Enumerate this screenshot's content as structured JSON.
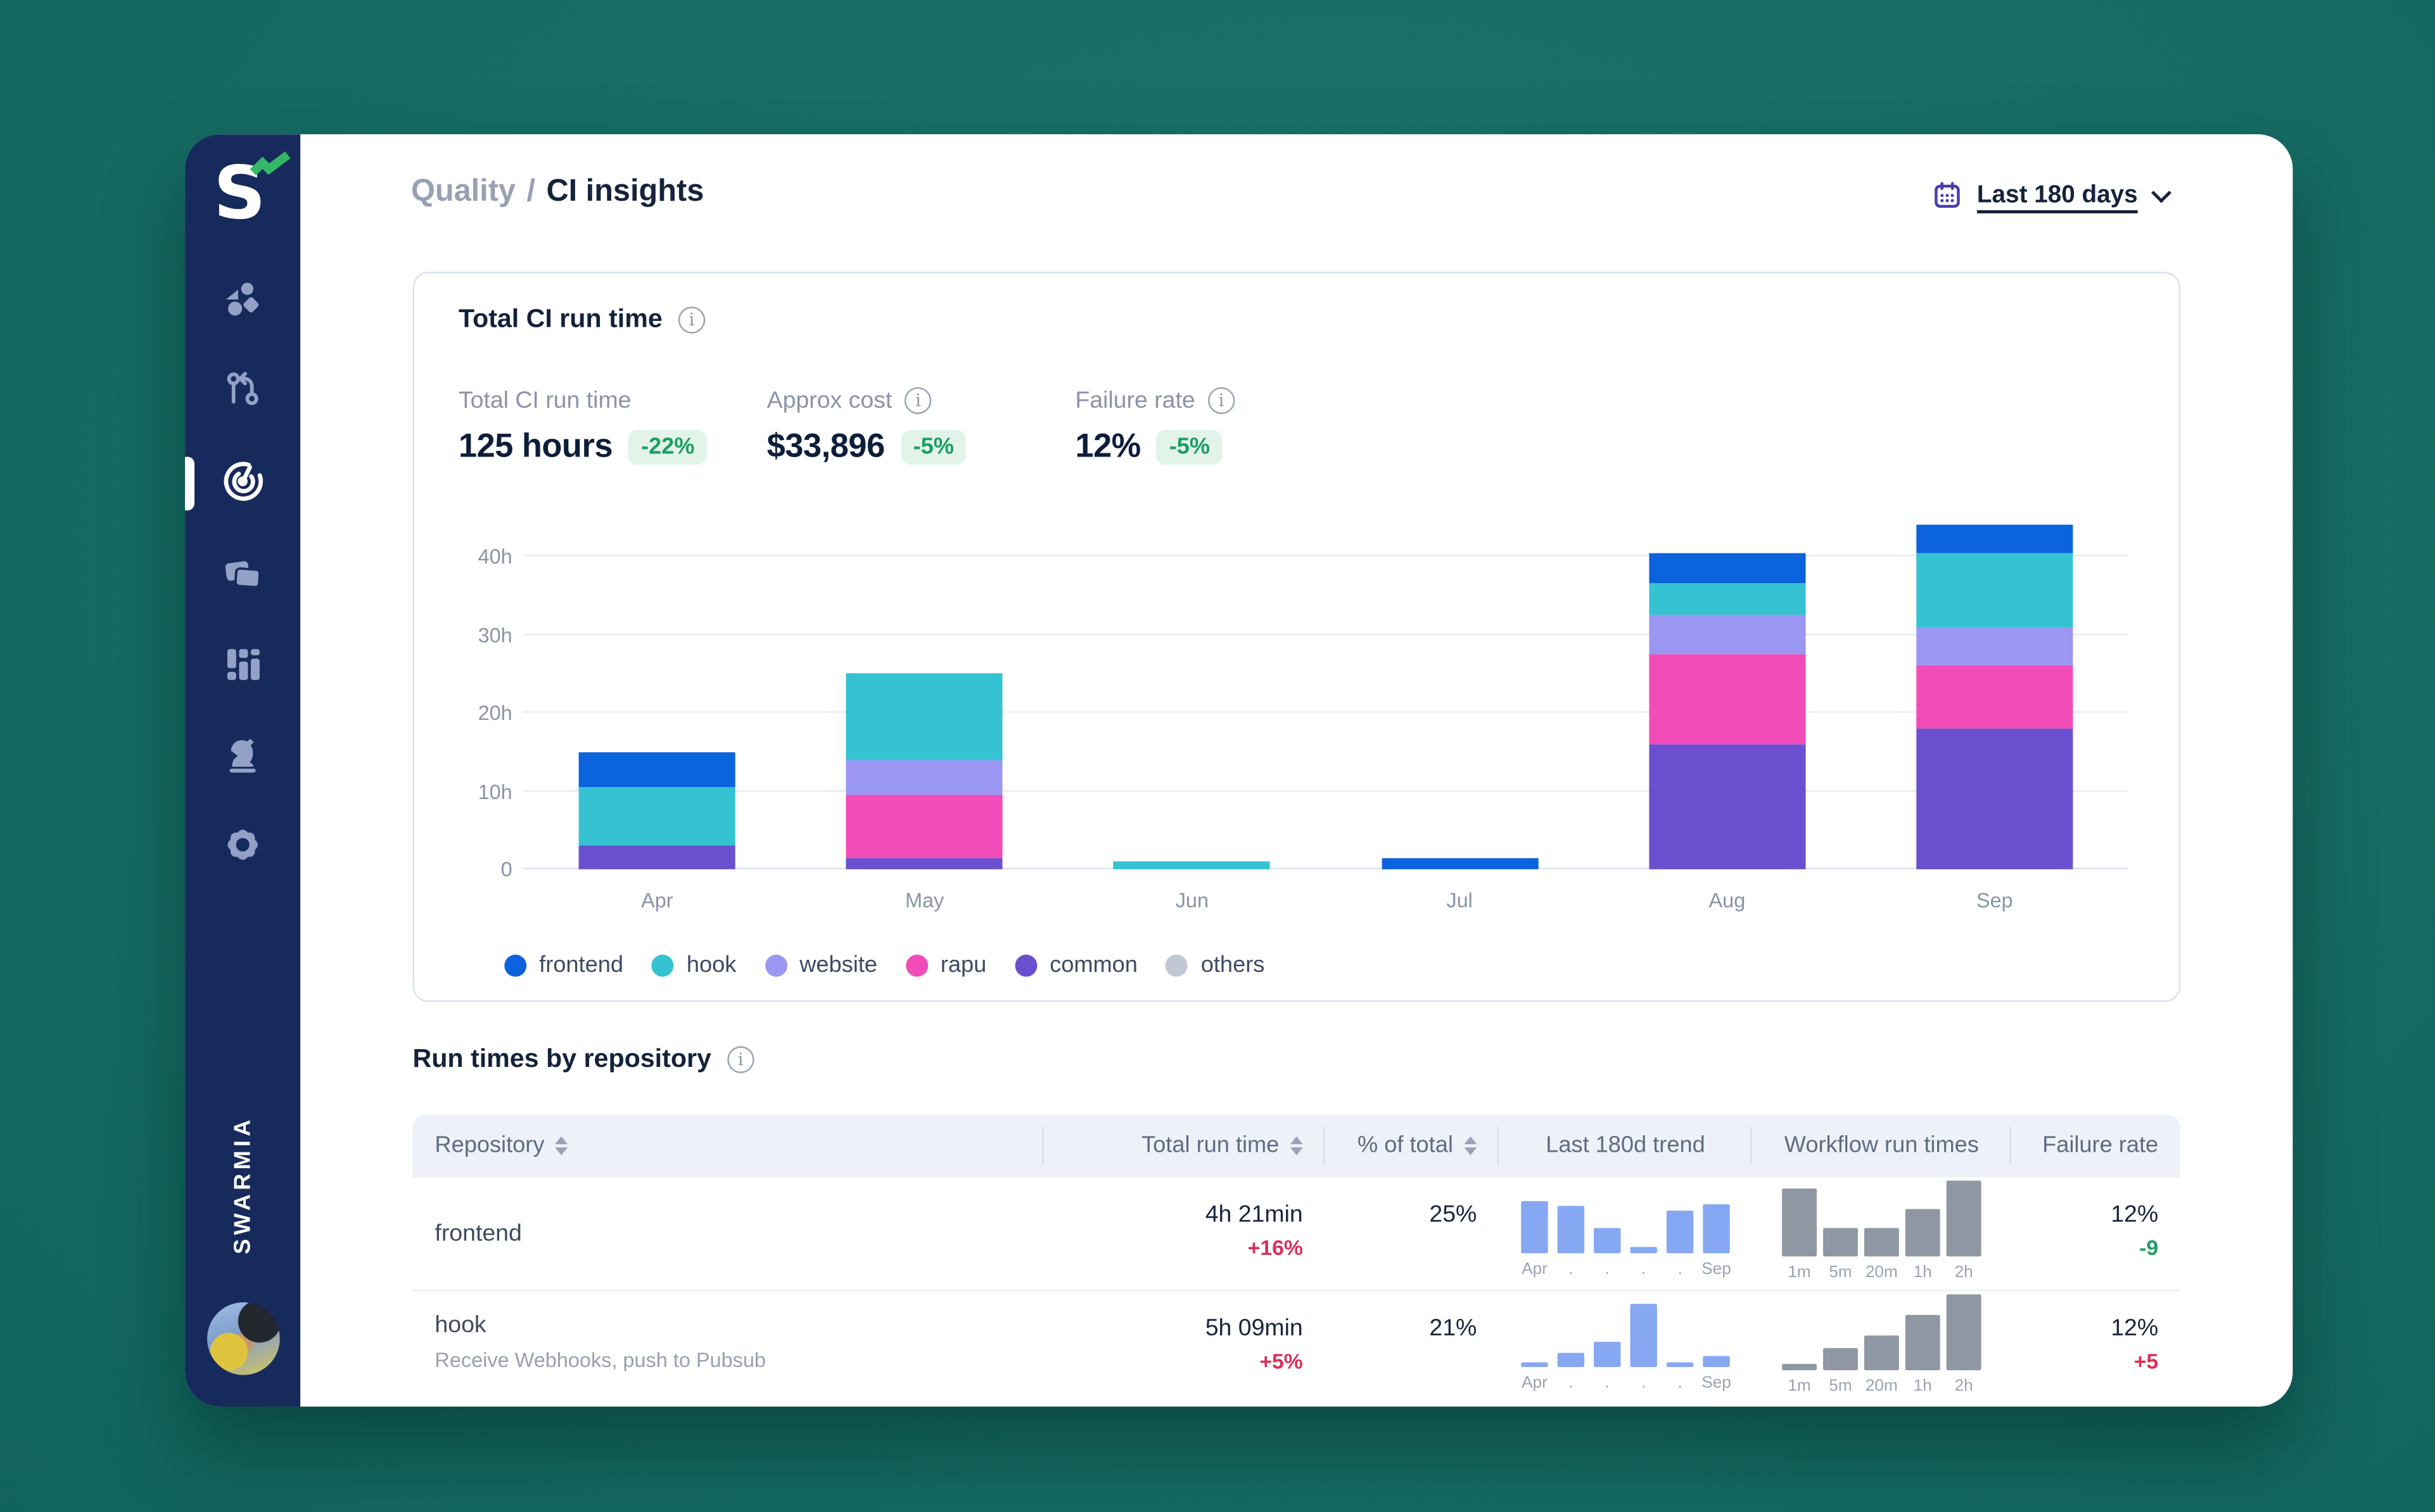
{
  "sidebar": {
    "brand_vertical": "SWARMIA",
    "items": [
      {
        "label": "shapes",
        "icon": "shapes-icon",
        "active": false
      },
      {
        "label": "pull-requests",
        "icon": "git-pull-request-icon",
        "active": false
      },
      {
        "label": "ci-insights",
        "icon": "radar-target-icon",
        "active": true
      },
      {
        "label": "copies",
        "icon": "copy-icon",
        "active": false
      },
      {
        "label": "boards",
        "icon": "kanban-icon",
        "active": false
      },
      {
        "label": "strategy",
        "icon": "chess-knight-icon",
        "active": false
      },
      {
        "label": "settings",
        "icon": "gear-icon",
        "active": false
      }
    ]
  },
  "header": {
    "breadcrumb": {
      "section": "Quality",
      "separator": "/",
      "page": "CI insights"
    },
    "date_filter": {
      "label": "Last 180 days",
      "icon": "calendar-icon"
    }
  },
  "summary_card": {
    "title": "Total CI run time",
    "stats": [
      {
        "label": "Total CI run time",
        "value": "125 hours",
        "delta": "-22%",
        "tone": "green",
        "info": false
      },
      {
        "label": "Approx cost",
        "value": "$33,896",
        "delta": "-5%",
        "tone": "green",
        "info": true
      },
      {
        "label": "Failure rate",
        "value": "12%",
        "delta": "-5%",
        "tone": "green",
        "info": true
      }
    ]
  },
  "chart_data": {
    "type": "bar",
    "stacked": true,
    "title": "Total CI run time",
    "categories": [
      "Apr",
      "May",
      "Jun",
      "Jul",
      "Aug",
      "Sep"
    ],
    "unit": "hours",
    "y_ticks": [
      "0",
      "10h",
      "20h",
      "30h",
      "40h"
    ],
    "ylim": [
      0,
      45
    ],
    "grid": true,
    "legend_position": "bottom",
    "stack_order_bottom_to_top": [
      "common",
      "rapu",
      "website",
      "hook",
      "frontend",
      "others"
    ],
    "series": [
      {
        "name": "frontend",
        "color": "#0B63DE",
        "values": [
          4.5,
          0,
          0,
          1.5,
          4,
          3.5
        ]
      },
      {
        "name": "hook",
        "color": "#35C3D2",
        "values": [
          7.5,
          11,
          1,
          0,
          4,
          9.5
        ]
      },
      {
        "name": "website",
        "color": "#9C96F3",
        "values": [
          0,
          4.5,
          0,
          0,
          5,
          5
        ]
      },
      {
        "name": "rapu",
        "color": "#F14CB8",
        "values": [
          0,
          8,
          0,
          0,
          11.5,
          8
        ]
      },
      {
        "name": "common",
        "color": "#6A50CE",
        "values": [
          3,
          1.5,
          0,
          0,
          16,
          18
        ]
      },
      {
        "name": "others",
        "color": "#C2C7D6",
        "values": [
          0,
          0,
          0,
          0,
          0,
          0
        ]
      }
    ]
  },
  "table": {
    "title": "Run times by repository",
    "columns": [
      {
        "label": "Repository",
        "sortable": true,
        "align": "left"
      },
      {
        "label": "Total run time",
        "sortable": true,
        "align": "right"
      },
      {
        "label": "% of total",
        "sortable": true,
        "align": "right"
      },
      {
        "label": "Last 180d trend",
        "sortable": false,
        "align": "center"
      },
      {
        "label": "Workflow run times",
        "sortable": false,
        "align": "center"
      },
      {
        "label": "Failure rate",
        "sortable": false,
        "align": "right"
      }
    ],
    "rows": [
      {
        "repository": "frontend",
        "description": "",
        "total_run_time": "4h 21min",
        "total_delta": "+16%",
        "total_delta_tone": "red",
        "percent_of_total": "25%",
        "trend": {
          "axis_labels": [
            "Apr",
            ".",
            ".",
            ".",
            ".",
            "Sep"
          ],
          "values": [
            0.75,
            0.68,
            0.36,
            0.1,
            0.62,
            0.7
          ]
        },
        "workflow": {
          "axis_labels": [
            "1m",
            "5m",
            "20m",
            "1h",
            "2h"
          ],
          "values": [
            0.9,
            0.37,
            0.37,
            0.63,
            1.0
          ]
        },
        "failure_rate": "12%",
        "failure_delta": "-9",
        "failure_delta_tone": "green"
      },
      {
        "repository": "hook",
        "description": "Receive Webhooks, push to Pubsub",
        "total_run_time": "5h 09min",
        "total_delta": "+5%",
        "total_delta_tone": "red",
        "percent_of_total": "21%",
        "trend": {
          "axis_labels": [
            "Apr",
            ".",
            ".",
            ".",
            ".",
            "Sep"
          ],
          "values": [
            0.06,
            0.2,
            0.36,
            0.9,
            0.06,
            0.16
          ]
        },
        "workflow": {
          "axis_labels": [
            "1m",
            "5m",
            "20m",
            "1h",
            "2h"
          ],
          "values": [
            0.08,
            0.3,
            0.45,
            0.72,
            1.0
          ]
        },
        "failure_rate": "12%",
        "failure_delta": "+5",
        "failure_delta_tone": "red"
      }
    ]
  },
  "colors": {
    "background_teal": "#0E6159",
    "sidebar_navy": "#172A5C",
    "accent_green": "#1D9E63",
    "accent_green_bg": "#E2F4EA",
    "accent_red": "#D8305A",
    "trend_bar_blue": "#86A8F3",
    "workflow_bar_gray": "#8F97A3",
    "text_dark": "#16243D",
    "text_gray": "#8A93A8"
  }
}
